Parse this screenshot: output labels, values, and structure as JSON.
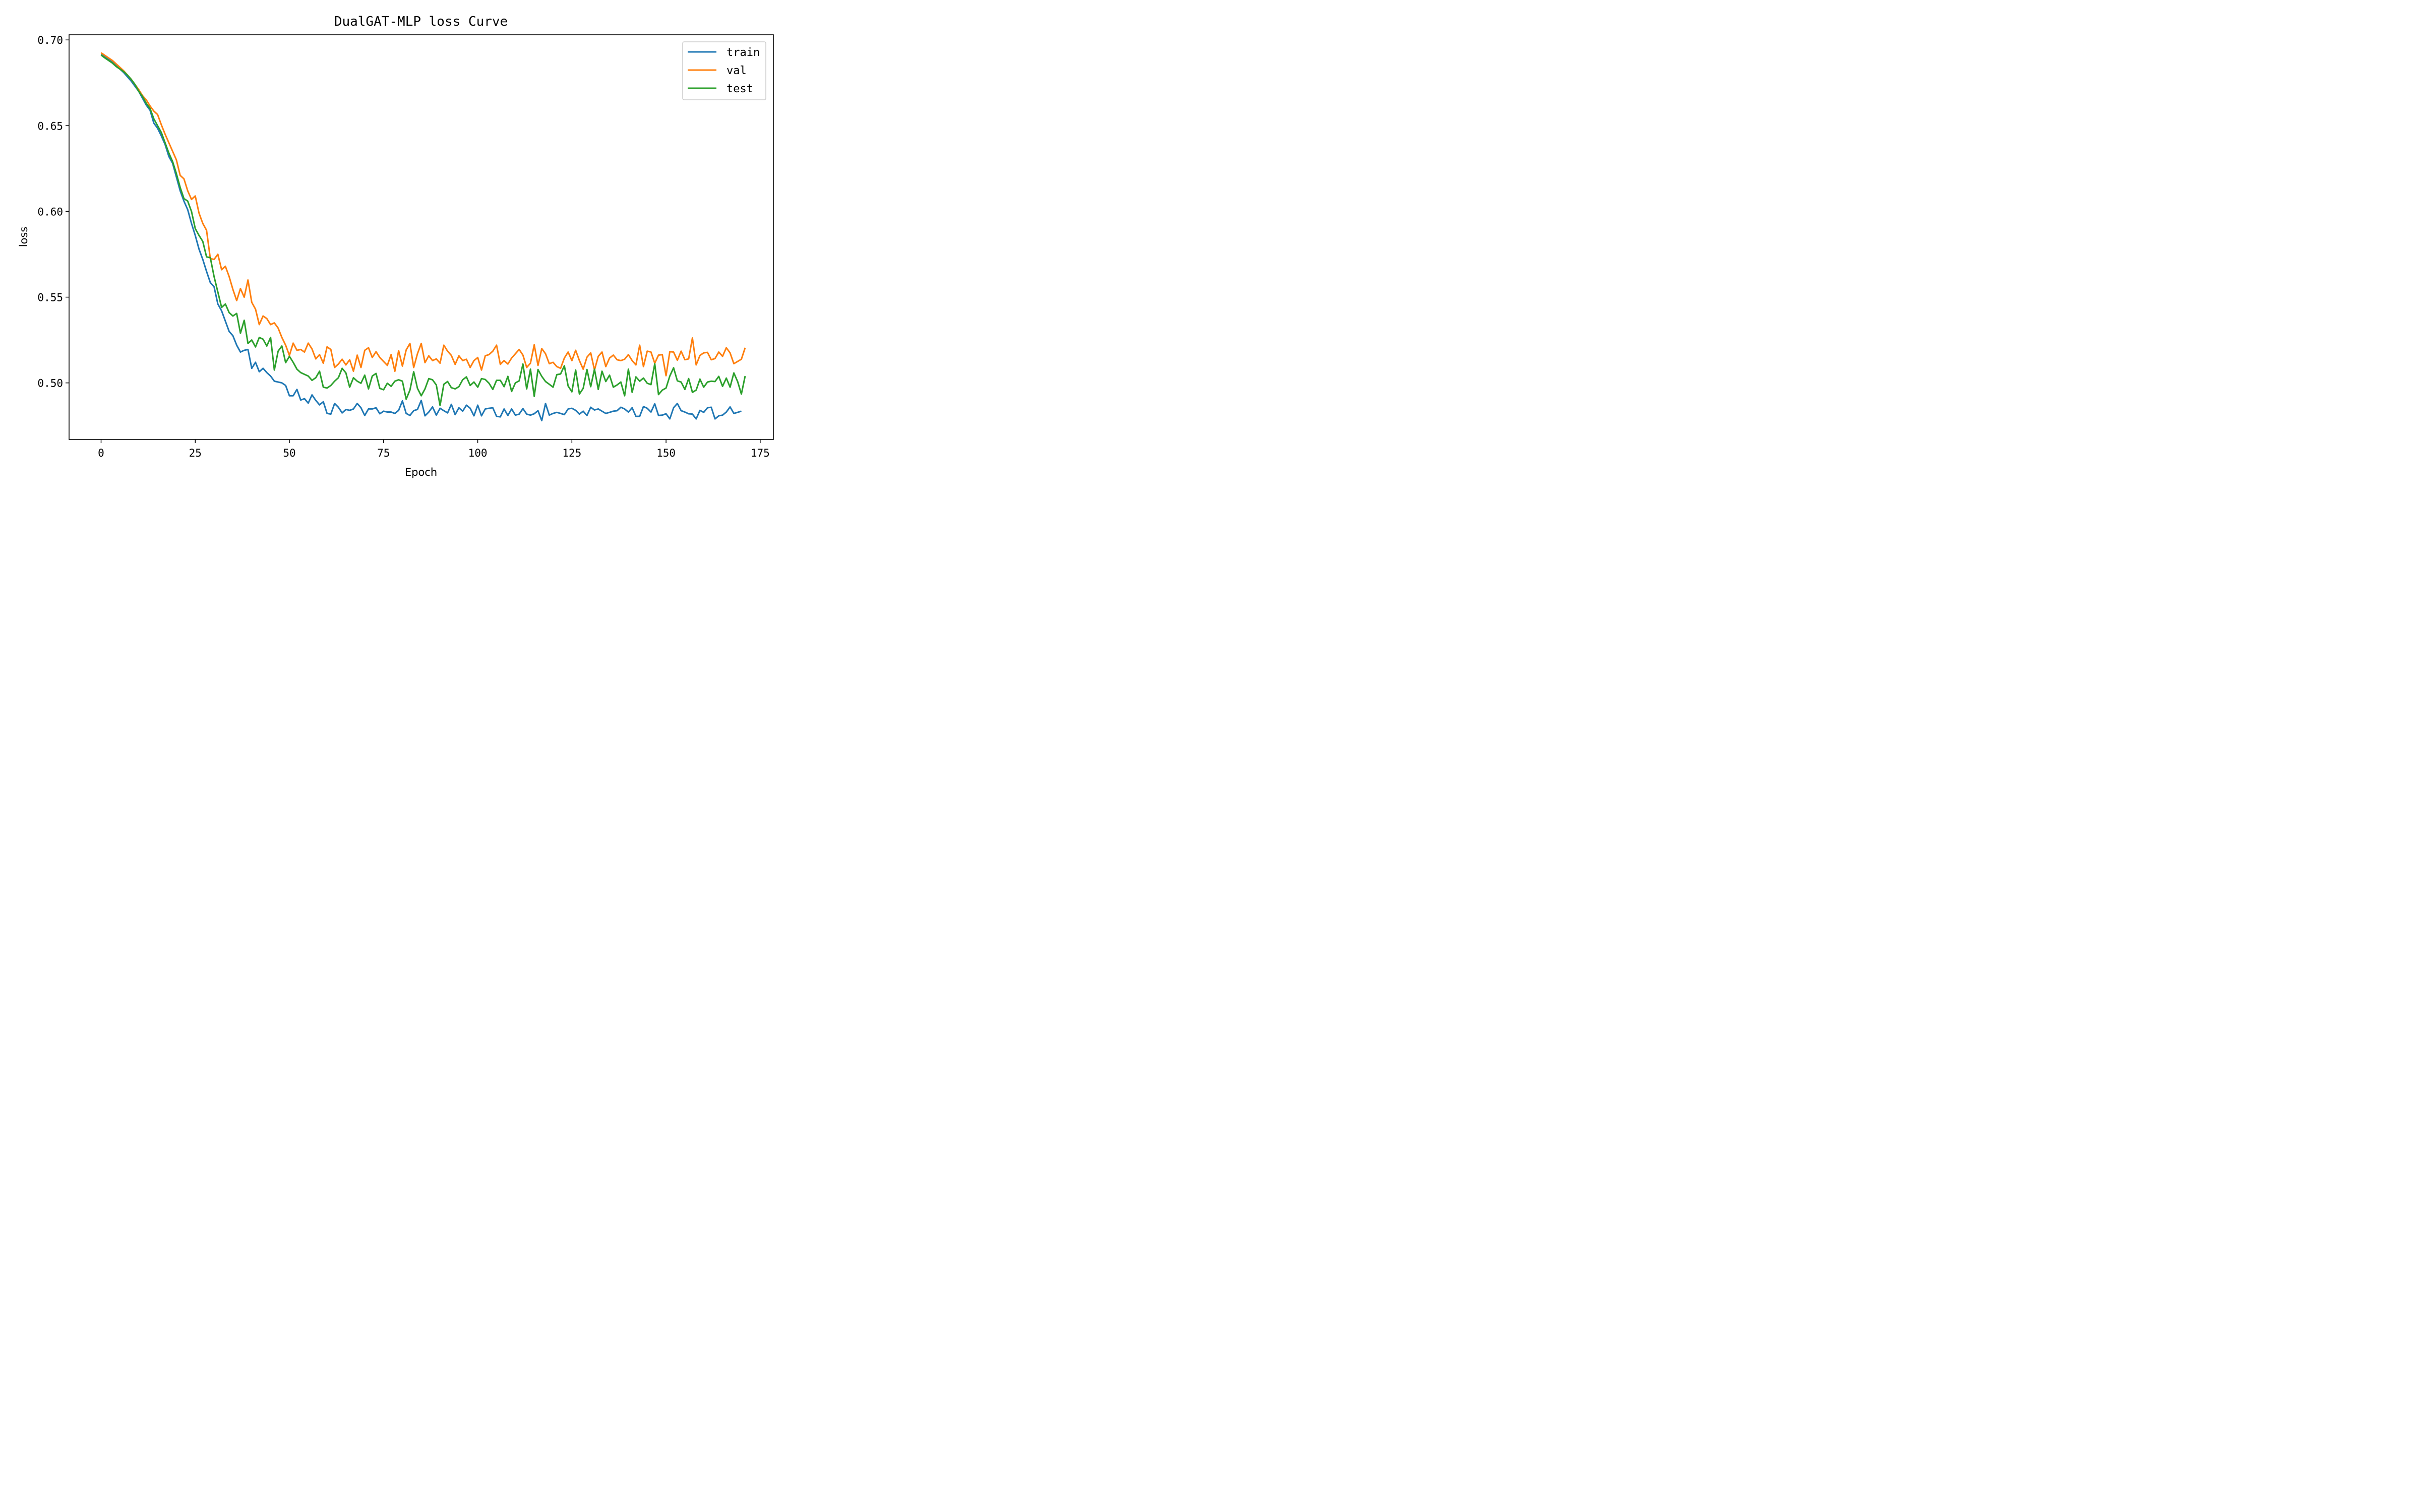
{
  "chart_data": {
    "type": "line",
    "title": "DualGAT-MLP loss Curve",
    "xlabel": "Epoch",
    "ylabel": "loss",
    "xlim": [
      -8.5,
      178.5
    ],
    "ylim": [
      0.467,
      0.703
    ],
    "xticks": [
      0,
      25,
      50,
      75,
      100,
      125,
      150,
      175
    ],
    "yticks": [
      0.5,
      0.55,
      0.6,
      0.65,
      0.7
    ],
    "ytick_labels": [
      "0.50",
      "0.55",
      "0.60",
      "0.65",
      "0.70"
    ],
    "grid": false,
    "legend_position": "upper right",
    "series": [
      {
        "name": "train",
        "color": "#1f77b4",
        "values": [
          0.6915,
          0.69,
          0.6885,
          0.687,
          0.685,
          0.683,
          0.681,
          0.6785,
          0.676,
          0.673,
          0.67,
          0.666,
          0.662,
          0.659,
          0.6515,
          0.6485,
          0.644,
          0.639,
          0.632,
          0.628,
          0.62,
          0.612,
          0.606,
          0.601,
          0.593,
          0.586,
          0.578,
          0.572,
          0.565,
          0.5585,
          0.556,
          0.546,
          0.542,
          0.536,
          0.53,
          0.5275,
          0.522,
          0.518,
          0.519,
          0.5195,
          0.5085,
          0.512,
          0.5065,
          0.5085,
          0.506,
          0.504,
          0.501,
          0.5005,
          0.5,
          0.4985,
          0.4925,
          0.4925,
          0.4962,
          0.49,
          0.4908,
          0.4882,
          0.493,
          0.4898,
          0.4872,
          0.489,
          0.4822,
          0.4818,
          0.488,
          0.4858,
          0.4825,
          0.4845,
          0.484,
          0.4848,
          0.488,
          0.4855,
          0.481,
          0.4848,
          0.4848,
          0.4855,
          0.482,
          0.4835,
          0.483,
          0.483,
          0.4822,
          0.484,
          0.4895,
          0.4822,
          0.481,
          0.4838,
          0.4845,
          0.4898,
          0.4808,
          0.483,
          0.486,
          0.4812,
          0.4852,
          0.4838,
          0.4825,
          0.4875,
          0.4815,
          0.4855,
          0.4835,
          0.487,
          0.4852,
          0.4808,
          0.487,
          0.4808,
          0.4848,
          0.4852,
          0.4855,
          0.4805,
          0.4802,
          0.4848,
          0.481,
          0.4848,
          0.4812,
          0.4818,
          0.485,
          0.4818,
          0.4812,
          0.482,
          0.4838,
          0.478,
          0.488,
          0.4812,
          0.4822,
          0.4828,
          0.4822,
          0.4815,
          0.4848,
          0.4852,
          0.484,
          0.4818,
          0.4835,
          0.481,
          0.4858,
          0.4842,
          0.4848,
          0.4835,
          0.4822,
          0.4828,
          0.4835,
          0.4838,
          0.4858,
          0.4848,
          0.483,
          0.4855,
          0.4805,
          0.4805,
          0.4862,
          0.4852,
          0.483,
          0.4878,
          0.481,
          0.4812,
          0.482,
          0.479,
          0.4855,
          0.488,
          0.4838,
          0.483,
          0.482,
          0.4818,
          0.479,
          0.484,
          0.4828,
          0.4855,
          0.4858,
          0.479,
          0.4808,
          0.4812,
          0.483,
          0.486,
          0.4822,
          0.4828,
          0.4835
        ]
      },
      {
        "name": "val",
        "color": "#ff7f0e",
        "values": [
          0.6925,
          0.691,
          0.6895,
          0.688,
          0.686,
          0.684,
          0.682,
          0.6795,
          0.677,
          0.674,
          0.671,
          0.6675,
          0.665,
          0.6615,
          0.6585,
          0.6565,
          0.6505,
          0.645,
          0.64,
          0.635,
          0.63,
          0.621,
          0.619,
          0.612,
          0.607,
          0.609,
          0.599,
          0.593,
          0.589,
          0.5725,
          0.572,
          0.575,
          0.566,
          0.568,
          0.562,
          0.5545,
          0.548,
          0.555,
          0.55,
          0.56,
          0.547,
          0.543,
          0.534,
          0.539,
          0.5375,
          0.534,
          0.535,
          0.532,
          0.5265,
          0.522,
          0.516,
          0.5232,
          0.519,
          0.5195,
          0.518,
          0.5232,
          0.5198,
          0.514,
          0.5165,
          0.5115,
          0.521,
          0.5195,
          0.509,
          0.511,
          0.5138,
          0.5105,
          0.5135,
          0.5068,
          0.5162,
          0.509,
          0.519,
          0.5205,
          0.5148,
          0.5182,
          0.5148,
          0.5125,
          0.5102,
          0.5165,
          0.5068,
          0.5188,
          0.5098,
          0.5192,
          0.523,
          0.509,
          0.517,
          0.523,
          0.5118,
          0.5158,
          0.513,
          0.514,
          0.5115,
          0.522,
          0.5185,
          0.516,
          0.5108,
          0.5158,
          0.513,
          0.5138,
          0.509,
          0.513,
          0.5148,
          0.5075,
          0.5158,
          0.5165,
          0.5185,
          0.522,
          0.5108,
          0.513,
          0.511,
          0.5145,
          0.517,
          0.5195,
          0.5162,
          0.509,
          0.5115,
          0.5222,
          0.5102,
          0.52,
          0.517,
          0.5112,
          0.512,
          0.5095,
          0.5085,
          0.5145,
          0.518,
          0.513,
          0.519,
          0.513,
          0.508,
          0.515,
          0.5175,
          0.5075,
          0.5155,
          0.518,
          0.5095,
          0.5145,
          0.5162,
          0.5135,
          0.513,
          0.5138,
          0.5165,
          0.513,
          0.5105,
          0.522,
          0.5095,
          0.5185,
          0.518,
          0.5115,
          0.5162,
          0.5165,
          0.5042,
          0.5182,
          0.518,
          0.5132,
          0.5185,
          0.5135,
          0.514,
          0.5262,
          0.5105,
          0.516,
          0.5175,
          0.5178,
          0.5135,
          0.5142,
          0.518,
          0.5155,
          0.5205,
          0.5175,
          0.5112,
          0.5125,
          0.5138,
          0.5205
        ]
      },
      {
        "name": "test",
        "color": "#2ca02c",
        "values": [
          0.6912,
          0.6895,
          0.688,
          0.6865,
          0.6845,
          0.683,
          0.6815,
          0.6795,
          0.677,
          0.674,
          0.67,
          0.667,
          0.663,
          0.66,
          0.654,
          0.65,
          0.646,
          0.64,
          0.634,
          0.629,
          0.622,
          0.614,
          0.6075,
          0.606,
          0.6,
          0.59,
          0.586,
          0.5825,
          0.5735,
          0.573,
          0.562,
          0.553,
          0.544,
          0.546,
          0.541,
          0.539,
          0.5405,
          0.529,
          0.5365,
          0.523,
          0.525,
          0.521,
          0.5265,
          0.5255,
          0.5215,
          0.5265,
          0.5075,
          0.5185,
          0.5215,
          0.5118,
          0.5155,
          0.512,
          0.508,
          0.506,
          0.505,
          0.504,
          0.5015,
          0.503,
          0.5068,
          0.4975,
          0.497,
          0.4985,
          0.501,
          0.503,
          0.5085,
          0.5058,
          0.4975,
          0.503,
          0.501,
          0.4998,
          0.5045,
          0.4965,
          0.504,
          0.5055,
          0.4968,
          0.496,
          0.4998,
          0.498,
          0.501,
          0.5018,
          0.501,
          0.4905,
          0.4958,
          0.5065,
          0.4968,
          0.4925,
          0.4965,
          0.5025,
          0.5018,
          0.4988,
          0.4868,
          0.4992,
          0.5008,
          0.4972,
          0.4965,
          0.4978,
          0.5018,
          0.5035,
          0.4985,
          0.5005,
          0.4975,
          0.5025,
          0.502,
          0.4998,
          0.4962,
          0.5015,
          0.5015,
          0.4978,
          0.5038,
          0.495,
          0.5,
          0.5012,
          0.511,
          0.4965,
          0.508,
          0.4922,
          0.5078,
          0.5038,
          0.5008,
          0.4992,
          0.4975,
          0.5048,
          0.5052,
          0.51,
          0.4982,
          0.4948,
          0.5075,
          0.4935,
          0.4968,
          0.5078,
          0.4978,
          0.508,
          0.4962,
          0.5068,
          0.5008,
          0.5045,
          0.4975,
          0.4988,
          0.5005,
          0.4925,
          0.508,
          0.4945,
          0.5035,
          0.501,
          0.5028,
          0.4998,
          0.499,
          0.5112,
          0.4932,
          0.4958,
          0.497,
          0.504,
          0.5088,
          0.5012,
          0.5005,
          0.4962,
          0.5025,
          0.4945,
          0.4958,
          0.5022,
          0.4975,
          0.5005,
          0.501,
          0.5008,
          0.5038,
          0.498,
          0.5028,
          0.4975,
          0.5058,
          0.5008,
          0.4935,
          0.504
        ]
      }
    ]
  }
}
